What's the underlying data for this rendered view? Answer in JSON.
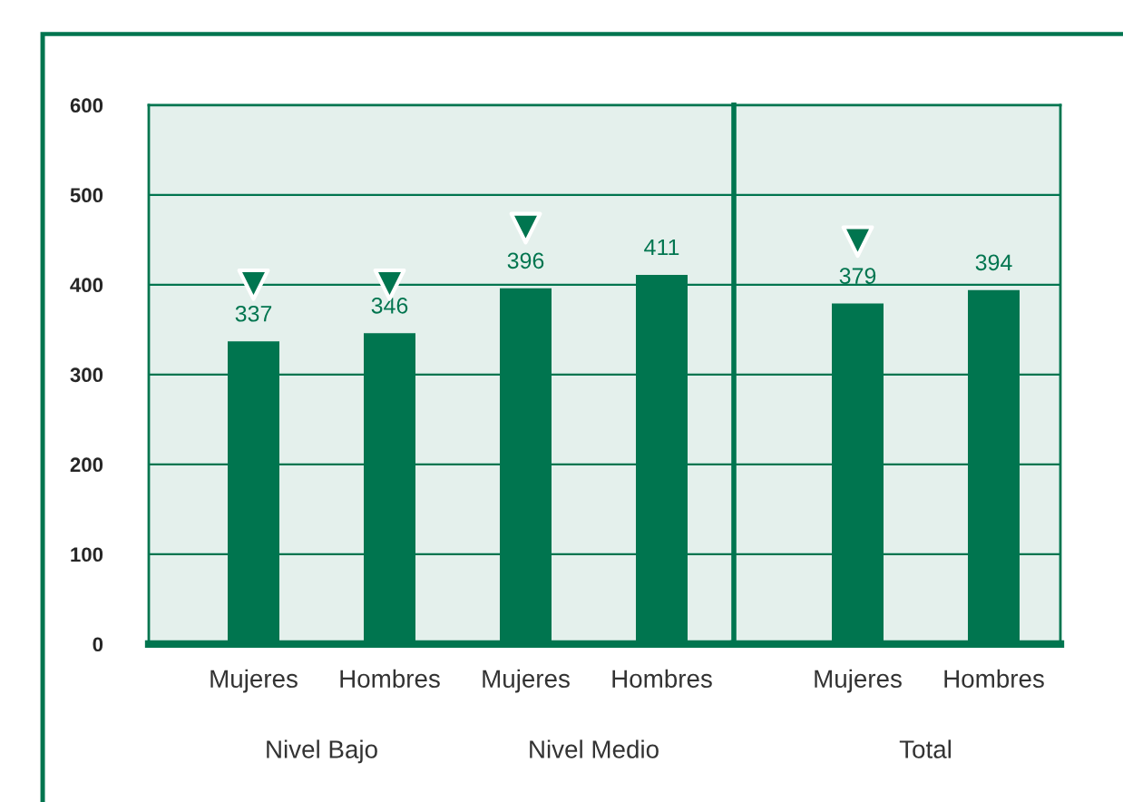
{
  "chart_data": [
    {
      "type": "bar",
      "categories": [
        "Mujeres",
        "Hombres",
        "Mujeres",
        "Hombres"
      ],
      "series": [
        {
          "color": "#00754f",
          "values": [
            337,
            346,
            396,
            411
          ]
        },
        {
          "type": "scatter",
          "color": "#00754f",
          "marker": "triangle",
          "values": [
            400,
            400,
            463,
            null
          ]
        }
      ],
      "value_labels": [
        "337",
        "346",
        "396",
        "411"
      ],
      "annotations": [
        "Nivel Bajo",
        "Nivel Medio"
      ],
      "ylim": [
        0,
        600
      ],
      "yticks": [
        0,
        100,
        200,
        300,
        400,
        500,
        600
      ],
      "grid": "y"
    },
    {
      "type": "bar",
      "categories": [
        "Mujeres",
        "Hombres"
      ],
      "series": [
        {
          "color": "#00754f",
          "values": [
            379,
            394
          ]
        },
        {
          "type": "scatter",
          "color": "#00754f",
          "marker": "triangle",
          "values": [
            448,
            null
          ]
        }
      ],
      "value_labels": [
        "379",
        "394"
      ],
      "annotations": [
        "Total"
      ],
      "ylim": [
        0,
        600
      ],
      "yticks": [
        0,
        100,
        200,
        300,
        400,
        500,
        600
      ],
      "tick_labels": "x",
      "grid": "y"
    }
  ]
}
